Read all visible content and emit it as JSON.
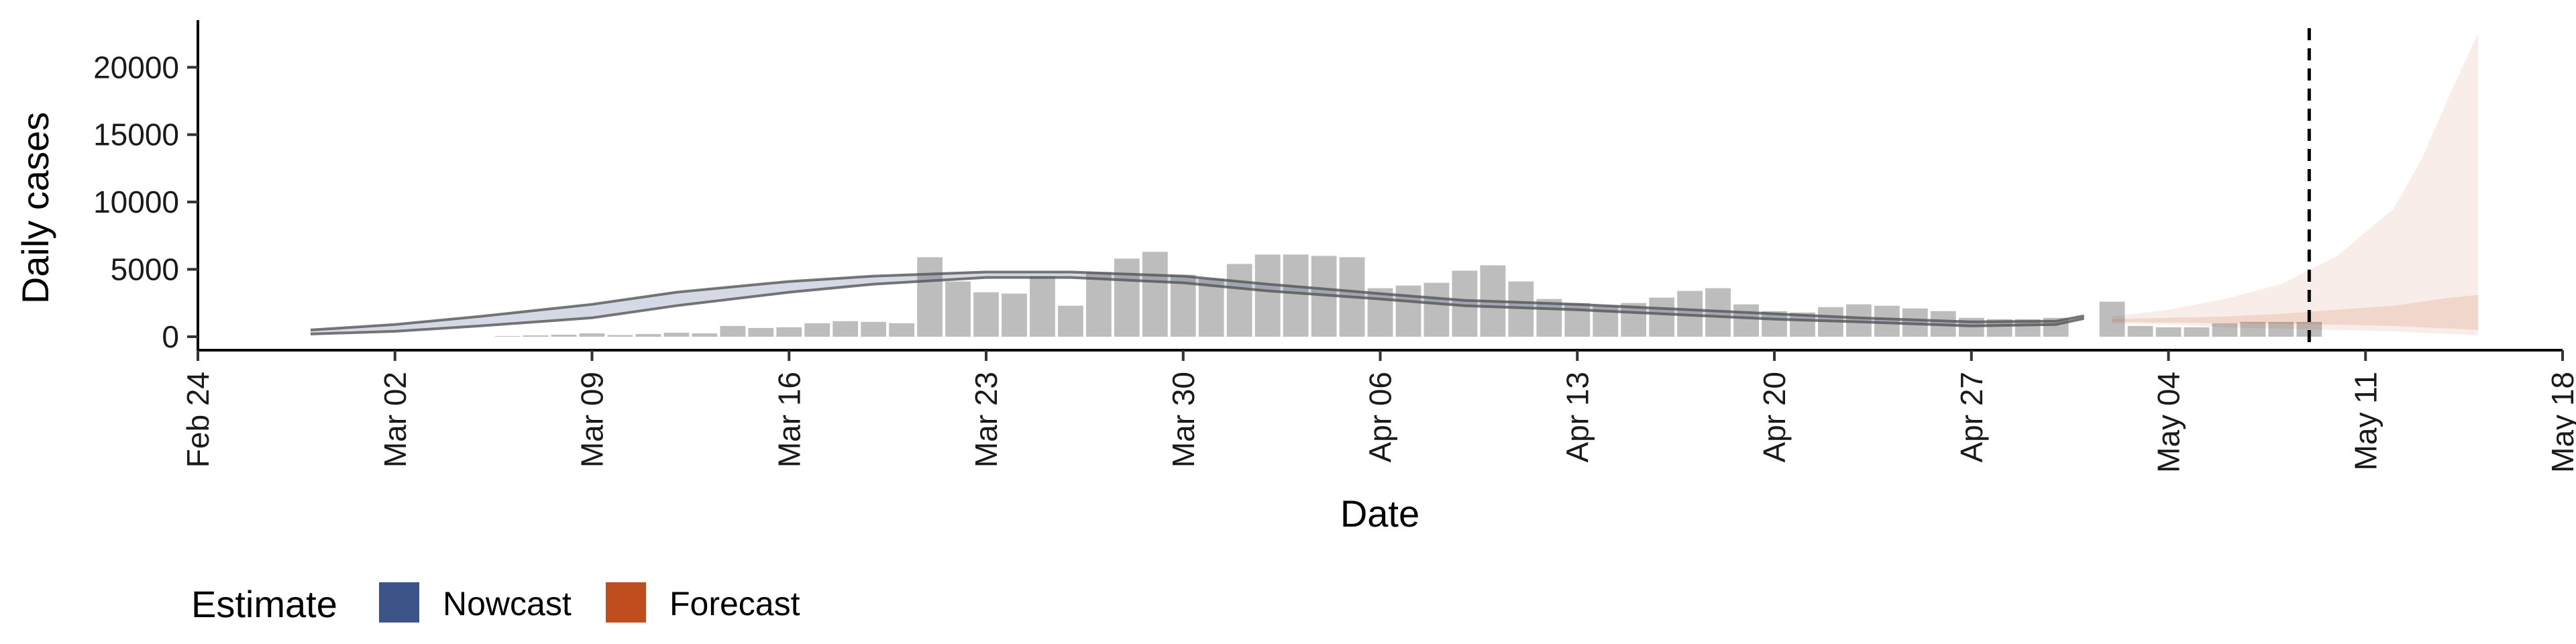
{
  "chart_data": {
    "type": "bar",
    "x_axis": {
      "label": "Date",
      "ticks": [
        "Feb 24",
        "Mar 02",
        "Mar 09",
        "Mar 16",
        "Mar 23",
        "Mar 30",
        "Apr 06",
        "Apr 13",
        "Apr 20",
        "Apr 27",
        "May 04",
        "May 11",
        "May 18"
      ],
      "range": [
        "2020-02-24",
        "2020-05-18"
      ]
    },
    "y_axis": {
      "label": "Daily cases",
      "ticks": [
        0,
        5000,
        10000,
        15000,
        20000
      ],
      "range": [
        -1000,
        23500
      ]
    },
    "vline_date": "2020-05-09",
    "vline_style": "dashed",
    "series": [
      {
        "name": "Daily cases",
        "kind": "bars",
        "color": "#bdbdbd",
        "points": [
          [
            "2020-03-06",
            50
          ],
          [
            "2020-03-07",
            100
          ],
          [
            "2020-03-08",
            150
          ],
          [
            "2020-03-09",
            250
          ],
          [
            "2020-03-10",
            120
          ],
          [
            "2020-03-11",
            200
          ],
          [
            "2020-03-12",
            300
          ],
          [
            "2020-03-13",
            250
          ],
          [
            "2020-03-14",
            800
          ],
          [
            "2020-03-15",
            650
          ],
          [
            "2020-03-16",
            700
          ],
          [
            "2020-03-17",
            1000
          ],
          [
            "2020-03-18",
            1150
          ],
          [
            "2020-03-19",
            1100
          ],
          [
            "2020-03-20",
            1000
          ],
          [
            "2020-03-21",
            5900
          ],
          [
            "2020-03-22",
            4100
          ],
          [
            "2020-03-23",
            3300
          ],
          [
            "2020-03-24",
            3200
          ],
          [
            "2020-03-25",
            4500
          ],
          [
            "2020-03-26",
            2300
          ],
          [
            "2020-03-27",
            4800
          ],
          [
            "2020-03-28",
            5800
          ],
          [
            "2020-03-29",
            6300
          ],
          [
            "2020-03-30",
            4600
          ],
          [
            "2020-03-31",
            4300
          ],
          [
            "2020-04-01",
            5400
          ],
          [
            "2020-04-02",
            6100
          ],
          [
            "2020-04-03",
            6100
          ],
          [
            "2020-04-04",
            6000
          ],
          [
            "2020-04-05",
            5900
          ],
          [
            "2020-04-06",
            3600
          ],
          [
            "2020-04-07",
            3800
          ],
          [
            "2020-04-08",
            4000
          ],
          [
            "2020-04-09",
            4900
          ],
          [
            "2020-04-10",
            5300
          ],
          [
            "2020-04-11",
            4100
          ],
          [
            "2020-04-12",
            2800
          ],
          [
            "2020-04-13",
            2500
          ],
          [
            "2020-04-14",
            2300
          ],
          [
            "2020-04-15",
            2500
          ],
          [
            "2020-04-16",
            2900
          ],
          [
            "2020-04-17",
            3400
          ],
          [
            "2020-04-18",
            3600
          ],
          [
            "2020-04-19",
            2400
          ],
          [
            "2020-04-20",
            1900
          ],
          [
            "2020-04-21",
            1800
          ],
          [
            "2020-04-22",
            2200
          ],
          [
            "2020-04-23",
            2400
          ],
          [
            "2020-04-24",
            2300
          ],
          [
            "2020-04-25",
            2100
          ],
          [
            "2020-04-26",
            1900
          ],
          [
            "2020-04-27",
            1400
          ],
          [
            "2020-04-28",
            1300
          ],
          [
            "2020-04-29",
            1300
          ],
          [
            "2020-04-30",
            1400
          ],
          [
            "2020-05-02",
            2600
          ],
          [
            "2020-05-03",
            800
          ],
          [
            "2020-05-04",
            700
          ],
          [
            "2020-05-05",
            700
          ],
          [
            "2020-05-06",
            1000
          ],
          [
            "2020-05-07",
            1100
          ],
          [
            "2020-05-08",
            1100
          ],
          [
            "2020-05-09",
            1100
          ]
        ]
      },
      {
        "name": "Nowcast",
        "kind": "ribbon",
        "color": "#3c5488",
        "dates": [
          "2020-02-28",
          "2020-03-02",
          "2020-03-05",
          "2020-03-09",
          "2020-03-12",
          "2020-03-16",
          "2020-03-19",
          "2020-03-23",
          "2020-03-26",
          "2020-03-30",
          "2020-04-02",
          "2020-04-06",
          "2020-04-09",
          "2020-04-13",
          "2020-04-16",
          "2020-04-20",
          "2020-04-23",
          "2020-04-27",
          "2020-04-30",
          "2020-05-01"
        ],
        "upper": [
          500,
          900,
          1500,
          2400,
          3300,
          4100,
          4500,
          4800,
          4800,
          4500,
          3900,
          3200,
          2700,
          2400,
          2100,
          1700,
          1400,
          1100,
          1150,
          1550
        ],
        "lower": [
          200,
          400,
          800,
          1400,
          2300,
          3300,
          3900,
          4400,
          4400,
          4000,
          3400,
          2800,
          2300,
          2000,
          1700,
          1300,
          1100,
          800,
          900,
          1350
        ]
      },
      {
        "name": "Forecast",
        "kind": "ribbon",
        "color": "#bf4d1e",
        "dates": [
          "2020-05-02",
          "2020-05-04",
          "2020-05-06",
          "2020-05-08",
          "2020-05-10",
          "2020-05-12",
          "2020-05-13",
          "2020-05-14",
          "2020-05-15"
        ],
        "upper": [
          1500,
          2000,
          2800,
          3900,
          6000,
          9500,
          13200,
          18000,
          22500
        ],
        "lower": [
          1000,
          900,
          700,
          600,
          500,
          400,
          300,
          200,
          100
        ],
        "inner_upper": [
          1300,
          1400,
          1500,
          1700,
          2000,
          2300,
          2600,
          2900,
          3100
        ],
        "inner_lower": [
          1100,
          1050,
          1000,
          950,
          900,
          800,
          700,
          600,
          500
        ]
      }
    ],
    "legend": {
      "title": "Estimate",
      "position": "bottom-left",
      "items": [
        {
          "label": "Nowcast",
          "color": "#3c5488"
        },
        {
          "label": "Forecast",
          "color": "#bf4d1e"
        }
      ]
    }
  }
}
